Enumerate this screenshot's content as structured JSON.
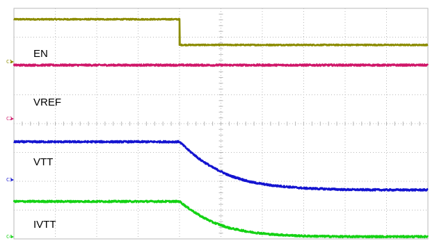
{
  "chart_data": {
    "type": "line",
    "title": "",
    "xlabel": "",
    "ylabel": "",
    "grid": true,
    "grid_divisions": {
      "x": 10,
      "y": 8
    },
    "xlim": [
      0,
      10
    ],
    "ylim": [
      0,
      8
    ],
    "colors": {
      "background": "#ffffff",
      "grid": "#b8b8b8"
    },
    "series": [
      {
        "name": "EN",
        "marker": "C1",
        "color": "#8c8c00",
        "x": [
          0,
          4.0,
          4.0,
          10
        ],
        "y": [
          7.62,
          7.62,
          6.73,
          6.73
        ],
        "noise": 0.02
      },
      {
        "name": "VREF",
        "marker": "C2",
        "color": "#d0186a",
        "x": [
          0,
          10
        ],
        "y": [
          6.03,
          6.03
        ],
        "noise": 0.03
      },
      {
        "name": "VTT",
        "marker": "C3",
        "color": "#1414d0",
        "x": [
          0,
          4.0,
          4.2,
          4.5,
          4.8,
          5.2,
          5.7,
          6.2,
          7.0,
          8.0,
          9.0,
          10
        ],
        "y": [
          3.37,
          3.37,
          3.1,
          2.75,
          2.48,
          2.2,
          1.98,
          1.86,
          1.76,
          1.71,
          1.7,
          1.7
        ],
        "noise": 0.03
      },
      {
        "name": "IVTT",
        "marker": "C4",
        "color": "#14d214",
        "x": [
          0,
          4.0,
          4.2,
          4.5,
          4.8,
          5.2,
          5.7,
          6.2,
          7.0,
          8.0,
          9.0,
          10
        ],
        "y": [
          1.3,
          1.3,
          1.08,
          0.8,
          0.58,
          0.38,
          0.24,
          0.16,
          0.1,
          0.08,
          0.08,
          0.08
        ],
        "noise": 0.03
      }
    ]
  }
}
